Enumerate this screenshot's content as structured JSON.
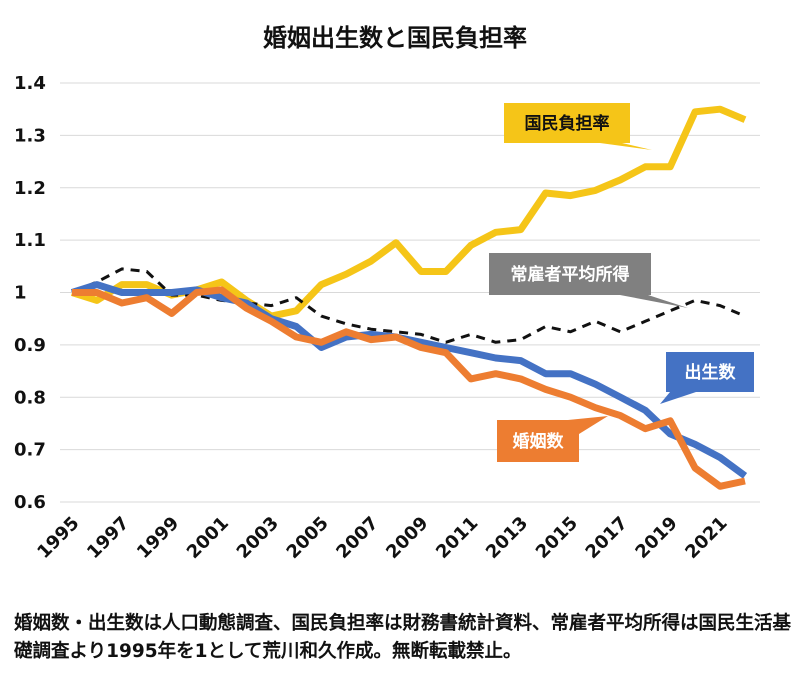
{
  "chart_data": {
    "type": "line",
    "title": "婚姻出生数と国民負担率",
    "x": [
      1995,
      1996,
      1997,
      1998,
      1999,
      2000,
      2001,
      2002,
      2003,
      2004,
      2005,
      2006,
      2007,
      2008,
      2009,
      2010,
      2011,
      2012,
      2013,
      2014,
      2015,
      2016,
      2017,
      2018,
      2019,
      2020,
      2021,
      2022
    ],
    "xticks": [
      "1995",
      "1997",
      "1999",
      "2001",
      "2003",
      "2005",
      "2007",
      "2009",
      "2011",
      "2013",
      "2015",
      "2017",
      "2019",
      "2021"
    ],
    "ylim": [
      0.6,
      1.4
    ],
    "yticks": [
      "0.6",
      "0.7",
      "0.8",
      "0.9",
      "1",
      "1.1",
      "1.2",
      "1.3",
      "1.4"
    ],
    "grid": true,
    "series": [
      {
        "name": "国民負担率",
        "color": "#f5c518",
        "dash": false,
        "values": [
          1.0,
          0.985,
          1.015,
          1.015,
          0.995,
          1.005,
          1.02,
          0.985,
          0.955,
          0.965,
          1.015,
          1.035,
          1.06,
          1.095,
          1.04,
          1.04,
          1.09,
          1.115,
          1.12,
          1.19,
          1.185,
          1.195,
          1.215,
          1.24,
          1.24,
          1.345,
          1.35,
          1.33
        ]
      },
      {
        "name": "常雇者平均所得",
        "color": "#111111",
        "dash": true,
        "values": [
          1.0,
          1.02,
          1.045,
          1.04,
          0.995,
          0.995,
          0.985,
          0.98,
          0.975,
          0.99,
          0.955,
          0.94,
          0.93,
          0.925,
          0.92,
          0.905,
          0.92,
          0.905,
          0.91,
          0.935,
          0.925,
          0.945,
          0.925,
          0.945,
          0.965,
          0.985,
          0.975,
          0.955
        ]
      },
      {
        "name": "出生数",
        "color": "#4472c4",
        "dash": false,
        "values": [
          1.0,
          1.015,
          1.0,
          1.0,
          1.0,
          1.005,
          0.99,
          0.98,
          0.95,
          0.935,
          0.895,
          0.915,
          0.92,
          0.915,
          0.905,
          0.895,
          0.885,
          0.875,
          0.87,
          0.845,
          0.845,
          0.825,
          0.8,
          0.775,
          0.73,
          0.71,
          0.685,
          0.65
        ]
      },
      {
        "name": "婚姻数",
        "color": "#ed7d31",
        "dash": false,
        "values": [
          1.0,
          1.0,
          0.98,
          0.99,
          0.96,
          1.0,
          1.005,
          0.97,
          0.945,
          0.915,
          0.905,
          0.925,
          0.91,
          0.915,
          0.895,
          0.885,
          0.835,
          0.845,
          0.835,
          0.815,
          0.8,
          0.78,
          0.765,
          0.74,
          0.755,
          0.665,
          0.63,
          0.64
        ]
      }
    ]
  },
  "callouts": [
    {
      "text": "国民負担率",
      "fill": "#f5c518",
      "dark": true
    },
    {
      "text": "常雇者平均所得",
      "fill": "#808080",
      "dark": false
    },
    {
      "text": "出生数",
      "fill": "#4472c4",
      "dark": false
    },
    {
      "text": "婚姻数",
      "fill": "#ed7d31",
      "dark": false
    }
  ],
  "note": "婚姻数・出生数は人口動態調査、国民負担率は財務書統計資料、常雇者平均所得は国民生活基礎調査より1995年を1として荒川和久作成。無断転載禁止。"
}
